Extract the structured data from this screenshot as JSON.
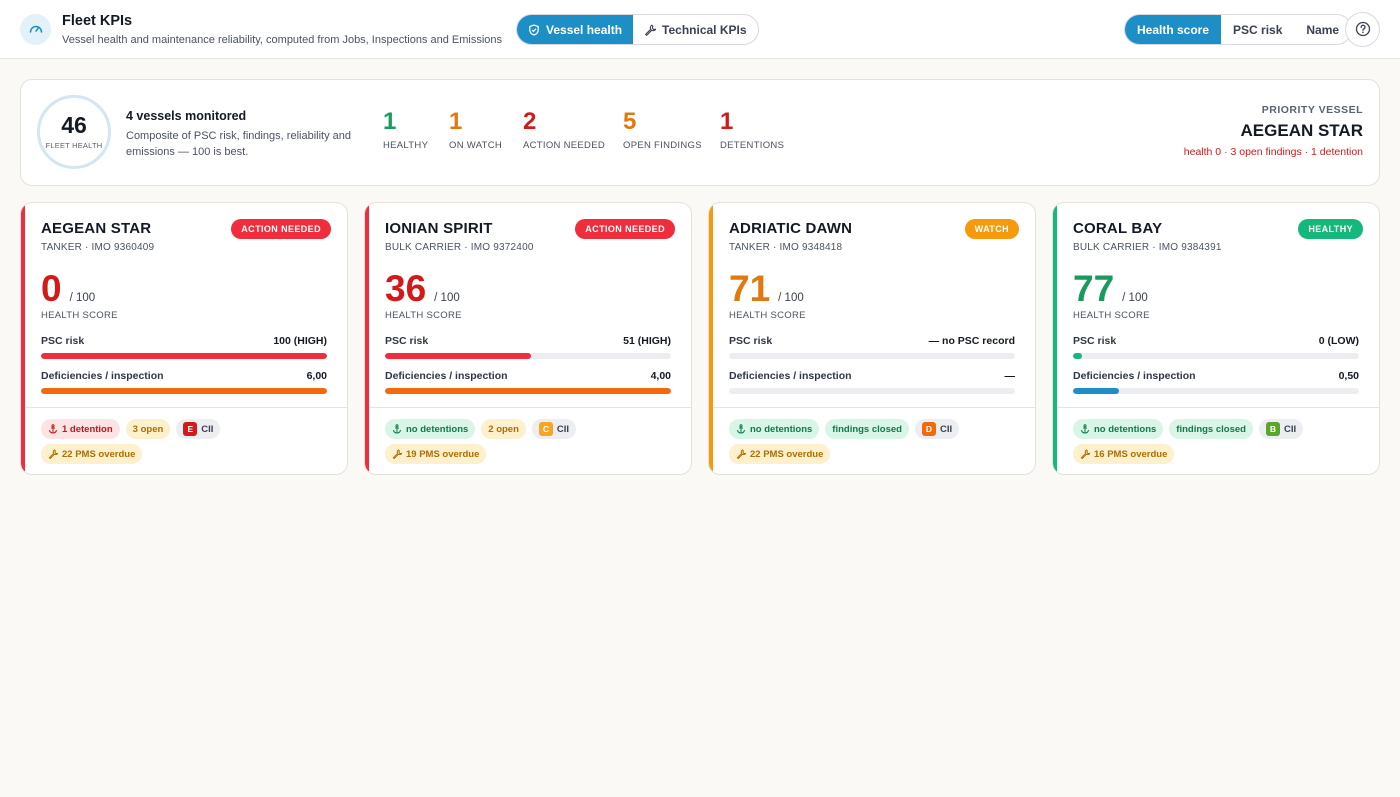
{
  "header": {
    "title": "Fleet KPIs",
    "subtitle": "Vessel health and maintenance reliability, computed from Jobs, Inspections and Emissions",
    "tabs": [
      {
        "label": "Vessel health",
        "active": true,
        "icon": "shield-icon"
      },
      {
        "label": "Technical KPIs",
        "active": false,
        "icon": "wrench-icon"
      }
    ],
    "sort": [
      {
        "label": "Health score",
        "active": true
      },
      {
        "label": "PSC risk",
        "active": false
      },
      {
        "label": "Name",
        "active": false
      }
    ],
    "help_icon": "question-circle-icon"
  },
  "summary": {
    "fleet_health_value": "46",
    "fleet_health_label": "FLEET HEALTH",
    "vessels_monitored": "4 vessels monitored",
    "description": "Composite of PSC risk, findings, reliability and emissions — 100 is best.",
    "stats": [
      {
        "value": "1",
        "label": "HEALTHY",
        "color": "#1a9a5c"
      },
      {
        "value": "1",
        "label": "ON WATCH",
        "color": "#e07a10"
      },
      {
        "value": "2",
        "label": "ACTION NEEDED",
        "color": "#d21a1a"
      },
      {
        "value": "5",
        "label": "OPEN FINDINGS",
        "color": "#e07a10"
      },
      {
        "value": "1",
        "label": "DETENTIONS",
        "color": "#d21a1a"
      }
    ],
    "priority_label": "PRIORITY VESSEL",
    "priority_name": "AEGEAN STAR",
    "priority_detail": "health 0 · 3 open findings · 1 detention"
  },
  "vessels": [
    {
      "name": "AEGEAN STAR",
      "meta": "TANKER · IMO 9360409",
      "status": "ACTION NEEDED",
      "status_color": "#ef2d3c",
      "accent": "#ef2d3c",
      "score": "0",
      "score_max": "/ 100",
      "score_color": "#d21a1a",
      "score_label": "HEALTH SCORE",
      "psc_label": "PSC risk",
      "psc_value": "100 (HIGH)",
      "psc_fill": 1.0,
      "psc_color": "#ef2d3c",
      "def_label": "Deficiencies / inspection",
      "def_value": "6,00",
      "def_fill": 1.0,
      "def_color": "#f26a0c",
      "chips": [
        {
          "kind": "red",
          "icon": "anchor-icon",
          "text": "1 detention"
        },
        {
          "kind": "amber",
          "icon": "",
          "text": "3 open"
        },
        {
          "kind": "grey",
          "icon": "cii",
          "cii": "E",
          "cii_color": "#d21a1a",
          "text": "CII"
        },
        {
          "kind": "amber",
          "icon": "wrench-icon",
          "text": "22 PMS overdue"
        }
      ]
    },
    {
      "name": "IONIAN SPIRIT",
      "meta": "BULK CARRIER · IMO 9372400",
      "status": "ACTION NEEDED",
      "status_color": "#ef2d3c",
      "accent": "#ef2d3c",
      "score": "36",
      "score_max": "/ 100",
      "score_color": "#d21a1a",
      "score_label": "HEALTH SCORE",
      "psc_label": "PSC risk",
      "psc_value": "51 (HIGH)",
      "psc_fill": 0.51,
      "psc_color": "#ef2d3c",
      "def_label": "Deficiencies / inspection",
      "def_value": "4,00",
      "def_fill": 1.0,
      "def_color": "#f26a0c",
      "chips": [
        {
          "kind": "green",
          "icon": "anchor-icon",
          "text": "no detentions"
        },
        {
          "kind": "amber",
          "icon": "",
          "text": "2 open"
        },
        {
          "kind": "grey",
          "icon": "cii",
          "cii": "C",
          "cii_color": "#f5a623",
          "text": "CII"
        },
        {
          "kind": "amber",
          "icon": "wrench-icon",
          "text": "19 PMS overdue"
        }
      ]
    },
    {
      "name": "ADRIATIC DAWN",
      "meta": "TANKER · IMO 9348418",
      "status": "WATCH",
      "status_color": "#f59a0b",
      "accent": "#f59a0b",
      "score": "71",
      "score_max": "/ 100",
      "score_color": "#e07a10",
      "score_label": "HEALTH SCORE",
      "psc_label": "PSC risk",
      "psc_value": "— no PSC record",
      "psc_fill": 0,
      "psc_color": "#cfd3d9",
      "def_label": "Deficiencies / inspection",
      "def_value": "—",
      "def_fill": 0,
      "def_color": "#cfd3d9",
      "chips": [
        {
          "kind": "green",
          "icon": "anchor-icon",
          "text": "no detentions"
        },
        {
          "kind": "green",
          "icon": "",
          "text": "findings closed"
        },
        {
          "kind": "grey",
          "icon": "cii",
          "cii": "D",
          "cii_color": "#f26a0c",
          "text": "CII"
        },
        {
          "kind": "amber",
          "icon": "wrench-icon",
          "text": "22 PMS overdue"
        }
      ]
    },
    {
      "name": "CORAL BAY",
      "meta": "BULK CARRIER · IMO 9384391",
      "status": "HEALTHY",
      "status_color": "#14b87a",
      "accent": "#14b87a",
      "score": "77",
      "score_max": "/ 100",
      "score_color": "#1a9a5c",
      "score_label": "HEALTH SCORE",
      "psc_label": "PSC risk",
      "psc_value": "0 (LOW)",
      "psc_fill": 0.03,
      "psc_color": "#14b87a",
      "def_label": "Deficiencies / inspection",
      "def_value": "0,50",
      "def_fill": 0.16,
      "def_color": "#1d8ec6",
      "chips": [
        {
          "kind": "green",
          "icon": "anchor-icon",
          "text": "no detentions"
        },
        {
          "kind": "green",
          "icon": "",
          "text": "findings closed"
        },
        {
          "kind": "grey",
          "icon": "cii",
          "cii": "B",
          "cii_color": "#5aa62a",
          "text": "CII"
        },
        {
          "kind": "amber",
          "icon": "wrench-icon",
          "text": "16 PMS overdue"
        }
      ]
    }
  ]
}
